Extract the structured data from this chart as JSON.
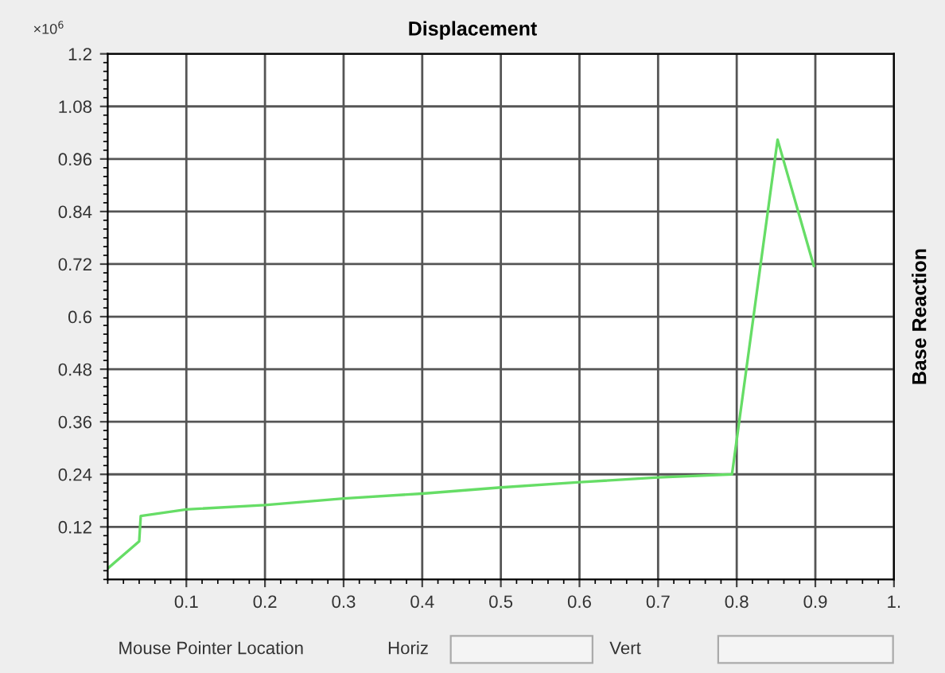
{
  "chart_data": {
    "type": "line",
    "title": "Displacement",
    "ylabel": "Base Reaction",
    "annotations": [
      "×10$^{6}$",
      "Mouse Pointer Location",
      "Horiz",
      "Vert"
    ],
    "x": [
      0,
      0.04,
      0.042,
      0.1,
      0.2,
      0.3,
      0.4,
      0.5,
      0.6,
      0.7,
      0.794,
      0.852,
      0.898
    ],
    "series": [
      {
        "color": "#66dd66",
        "values": [
          0.025,
          0.087,
          0.145,
          0.16,
          0.17,
          0.185,
          0.196,
          0.21,
          0.222,
          0.233,
          0.24,
          1.004,
          0.716
        ]
      }
    ],
    "xlim": [
      0,
      1
    ],
    "xticks": [
      0.1,
      0.2,
      0.3,
      0.4,
      0.5,
      0.6,
      0.7,
      0.8,
      0.9,
      {
        "value": 1,
        "label": "1."
      }
    ],
    "ylim": [
      0,
      1.2
    ],
    "yticks": [
      0.12,
      0.24,
      0.36,
      0.48,
      0.6,
      0.72,
      0.84,
      0.96,
      1.08,
      1.2
    ],
    "grid": true,
    "legend": false,
    "marker": "none",
    "line_style": "solid"
  }
}
